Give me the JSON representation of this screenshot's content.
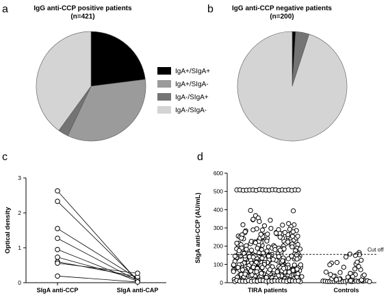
{
  "legend": {
    "labels": [
      "IgA+/SIgA+",
      "IgA+/SIgA-",
      "IgA-/SIgA+",
      "IgA-/SIgA-"
    ],
    "colors": [
      "#000000",
      "#9b9b9b",
      "#747474",
      "#d4d4d4"
    ]
  },
  "panels": {
    "a": {
      "letter": "a",
      "title_line1": "IgG anti-CCP positive patients",
      "title_line2": "(n=421)"
    },
    "b": {
      "letter": "b",
      "title_line1": "IgG anti-CCP negative patients",
      "title_line2": "(n=200)"
    },
    "c": {
      "letter": "c"
    },
    "d": {
      "letter": "d",
      "cutoff_label": "Cut off"
    }
  },
  "chart_data": [
    {
      "type": "pie",
      "title": "IgG anti-CCP positive patients (n=421)",
      "labels": [
        "IgA+/SIgA+",
        "IgA+/SIgA-",
        "IgA-/SIgA+",
        "IgA-/SIgA-"
      ],
      "values": [
        23,
        34,
        3,
        40
      ]
    },
    {
      "type": "pie",
      "title": "IgG anti-CCP negative patients (n=200)",
      "labels": [
        "IgA+/SIgA+",
        "IgA+/SIgA-",
        "IgA-/SIgA+",
        "IgA-/SIgA-"
      ],
      "values": [
        1,
        0,
        4,
        95
      ]
    },
    {
      "type": "line",
      "ylabel": "Optical density",
      "ylim": [
        0,
        3
      ],
      "yticks": [
        0,
        1,
        2,
        3
      ],
      "categories": [
        "SIgA anti-CCP",
        "SIgA anti-CAP"
      ],
      "pairs": [
        [
          2.63,
          0.05
        ],
        [
          2.33,
          0.08
        ],
        [
          1.55,
          0.12
        ],
        [
          1.27,
          0.06
        ],
        [
          0.95,
          0.04
        ],
        [
          0.73,
          0.1
        ],
        [
          0.6,
          0.17
        ],
        [
          0.56,
          0.27
        ],
        [
          0.19,
          0.02
        ]
      ]
    },
    {
      "type": "scatter",
      "ylabel": "SIgA anti-CCP (AU/mL)",
      "ylim": [
        0,
        600
      ],
      "yticks": [
        0,
        100,
        200,
        300,
        400,
        500,
        600
      ],
      "categories": [
        "TIRA patients",
        "Controls"
      ],
      "cutoff": 155
    }
  ]
}
